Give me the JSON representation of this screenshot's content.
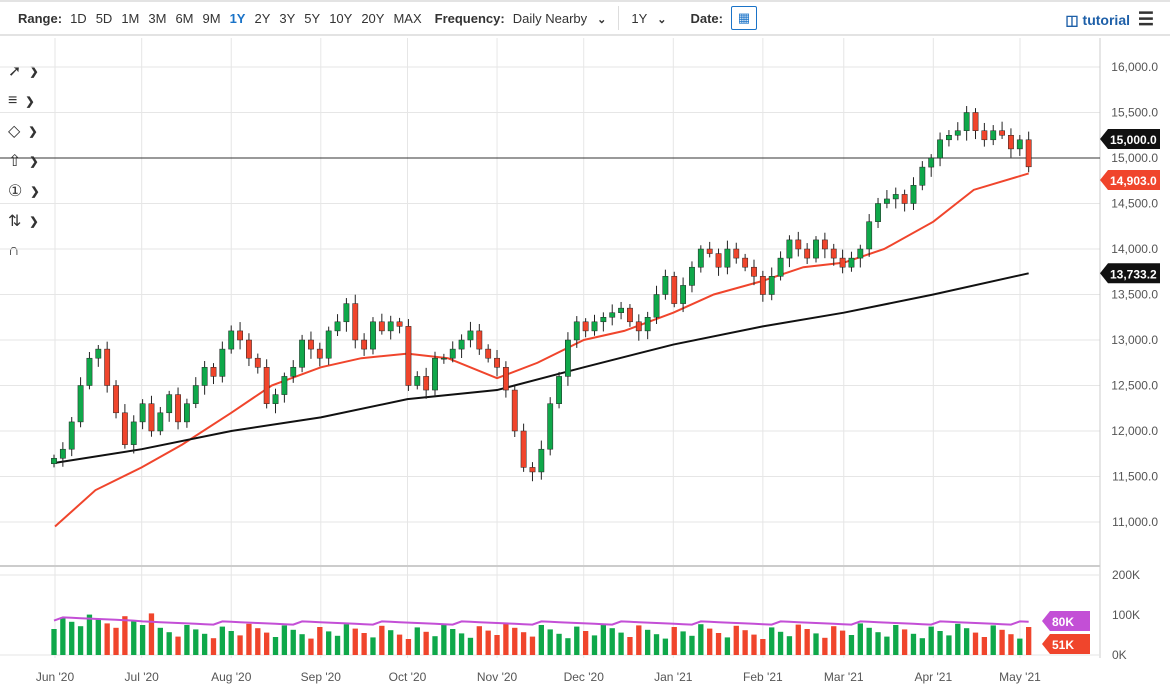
{
  "toolbar": {
    "range_label": "Range:",
    "ranges": [
      "1D",
      "5D",
      "1M",
      "3M",
      "6M",
      "9M",
      "1Y",
      "2Y",
      "3Y",
      "5Y",
      "10Y",
      "20Y",
      "MAX"
    ],
    "active_range": "1Y",
    "frequency_label": "Frequency:",
    "frequency_value": "Daily Nearby",
    "period_value": "1Y",
    "date_label": "Date:",
    "tutorial": "tutorial",
    "icons": [
      "calendar-icon",
      "film-icon",
      "hamburger-menu-icon"
    ]
  },
  "tools": [
    "trendline-icon",
    "fibonacci-icon",
    "shape-icon",
    "arrow-up-icon",
    "annotation-number-icon",
    "measure-icon",
    "magnet-icon"
  ],
  "colors": {
    "up": "#0fa84a",
    "down": "#f0452c",
    "ma50": "#f0452c",
    "ma200": "#111111",
    "volavg": "#c34fd6"
  },
  "chart_data": {
    "type": "candlestick",
    "y_ticks": [
      "16,000.0",
      "15,500.0",
      "15,000.0",
      "14,500.0",
      "14,000.0",
      "13,500.0",
      "13,000.0",
      "12,500.0",
      "12,000.0",
      "11,500.0",
      "11,000.0"
    ],
    "ylim": [
      10800,
      16200
    ],
    "x_ticks": [
      "Jun '20",
      "Jul '20",
      "Aug '20",
      "Sep '20",
      "Oct '20",
      "Nov '20",
      "Dec '20",
      "Jan '21",
      "Feb '21",
      "Mar '21",
      "Apr '21",
      "May '21"
    ],
    "date_range": [
      "2020-06-01",
      "2021-05-04"
    ],
    "closes": [
      11700,
      11800,
      12100,
      12500,
      12800,
      12900,
      12500,
      12200,
      11850,
      12100,
      12300,
      12000,
      12200,
      12400,
      12100,
      12300,
      12500,
      12700,
      12600,
      12900,
      13100,
      13000,
      12800,
      12700,
      12300,
      12400,
      12600,
      12700,
      13000,
      12900,
      12800,
      13100,
      13200,
      13400,
      13000,
      12900,
      13200,
      13100,
      13200,
      13150,
      12500,
      12600,
      12450,
      12800,
      12800,
      12900,
      13000,
      13100,
      12900,
      12800,
      12700,
      12450,
      12000,
      11600,
      11550,
      11800,
      12300,
      12600,
      13000,
      13200,
      13100,
      13200,
      13250,
      13300,
      13350,
      13200,
      13100,
      13250,
      13500,
      13700,
      13400,
      13600,
      13800,
      14000,
      13950,
      13800,
      14000,
      13900,
      13800,
      13700,
      13500,
      13700,
      13900,
      14100,
      14000,
      13900,
      14100,
      14000,
      13900,
      13800,
      13900,
      14000,
      14300,
      14500,
      14550,
      14600,
      14500,
      14700,
      14900,
      15000,
      15200,
      15250,
      15300,
      15500,
      15300,
      15200,
      15300,
      15250,
      15100,
      15200,
      14903
    ],
    "ma50": {
      "dates": [
        "2020-06-01",
        "2020-06-15",
        "2020-07-01",
        "2020-07-15",
        "2020-08-01",
        "2020-08-15",
        "2020-09-01",
        "2020-09-15",
        "2020-10-01",
        "2020-10-15",
        "2020-11-01",
        "2020-11-15",
        "2020-12-01",
        "2020-12-15",
        "2021-01-01",
        "2021-01-15",
        "2021-02-01",
        "2021-02-15",
        "2021-03-01",
        "2021-03-15",
        "2021-04-01",
        "2021-04-15",
        "2021-05-04"
      ],
      "values": [
        10950,
        11350,
        11600,
        11850,
        12200,
        12500,
        12700,
        12800,
        12850,
        12800,
        12580,
        12750,
        13000,
        13100,
        13300,
        13500,
        13650,
        13800,
        13850,
        14000,
        14300,
        14650,
        14830
      ]
    },
    "ma200": {
      "dates": [
        "2020-06-01",
        "2020-07-01",
        "2020-08-01",
        "2020-09-01",
        "2020-10-01",
        "2020-11-01",
        "2020-12-01",
        "2021-01-01",
        "2021-02-01",
        "2021-03-01",
        "2021-04-01",
        "2021-05-04"
      ],
      "values": [
        11650,
        11800,
        12000,
        12150,
        12350,
        12450,
        12700,
        12950,
        13150,
        13300,
        13500,
        13733
      ]
    },
    "reference_line": 15000,
    "price_labels": {
      "reference": "15,000.0",
      "last": "14,903.0",
      "ma200": "13,733.2"
    },
    "volume": {
      "y_ticks": [
        "200K",
        "100K",
        "0K"
      ],
      "ylim": [
        0,
        200
      ],
      "avg": 80,
      "last": 51,
      "avg_label": "80K",
      "last_label": "51K"
    }
  }
}
